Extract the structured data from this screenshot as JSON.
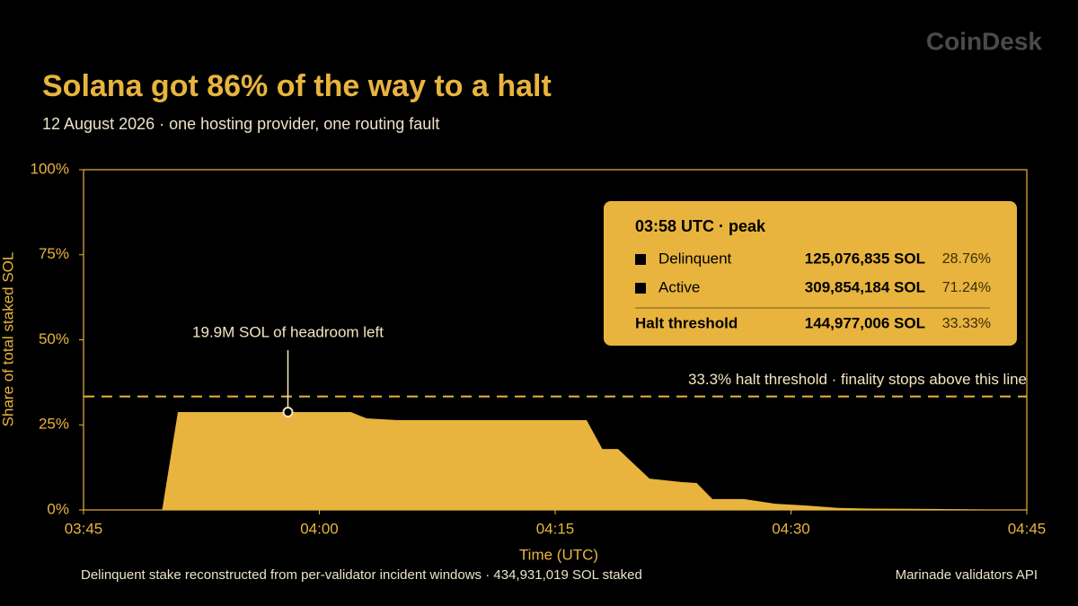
{
  "brand": "CoinDesk",
  "chart_data": {
    "type": "area",
    "title": "Solana got 86% of the way to a halt",
    "subtitle": "12 August 2026 · one hosting provider, one routing fault",
    "x_label": "Time (UTC)",
    "y_label": "Share of total staked SOL",
    "x": [
      "03:45",
      "03:50",
      "03:51",
      "03:58",
      "04:02",
      "04:03",
      "04:05",
      "04:17",
      "04:18",
      "04:19",
      "04:21",
      "04:23",
      "04:24",
      "04:25",
      "04:27",
      "04:29",
      "04:31",
      "04:33",
      "04:35",
      "04:39",
      "04:45"
    ],
    "series": [
      {
        "name": "Delinquent",
        "color": "#e8b43e",
        "values": [
          0,
          0,
          28.76,
          28.76,
          28.76,
          26.9,
          26.4,
          26.4,
          17.9,
          17.9,
          9.2,
          8.2,
          7.9,
          3.2,
          3.2,
          1.8,
          1.3,
          0.6,
          0.4,
          0.3,
          0
        ]
      }
    ],
    "xlim": [
      "03:45",
      "04:45"
    ],
    "xticks": [
      "03:45",
      "04:00",
      "04:15",
      "04:30",
      "04:45"
    ],
    "ylim": [
      0,
      100
    ],
    "yticks": [
      {
        "value": 0,
        "label": "0%"
      },
      {
        "value": 25,
        "label": "25%"
      },
      {
        "value": 50,
        "label": "50%"
      },
      {
        "value": 75,
        "label": "75%"
      },
      {
        "value": 100,
        "label": "100%"
      }
    ],
    "threshold": {
      "value": 33.33,
      "label": "33.3% halt threshold · finality stops above this line"
    },
    "annotation": "19.9M SOL of headroom left",
    "tooltip": {
      "title": "03:58 UTC · peak",
      "rows": [
        {
          "label": "Delinquent",
          "sol": "125,076,835 SOL",
          "share": "28.76%"
        },
        {
          "label": "Active",
          "sol": "309,854,184 SOL",
          "share": "71.24%"
        },
        {
          "label": "Halt threshold",
          "sol": "144,977,006 SOL",
          "share": "33.33%"
        }
      ]
    },
    "note": "Delinquent stake reconstructed from per-validator incident windows · 434,931,019 SOL staked",
    "source": "Marinade validators API"
  }
}
